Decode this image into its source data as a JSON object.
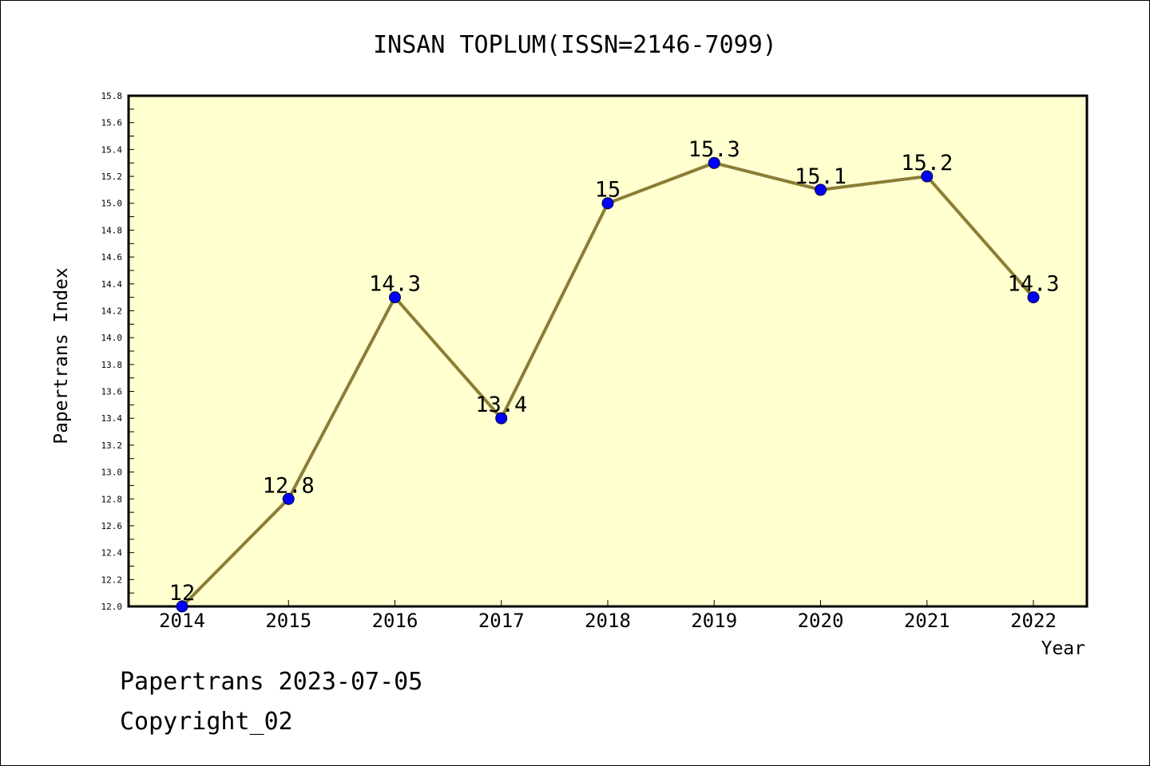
{
  "chart_data": {
    "type": "line",
    "title": "INSAN TOPLUM(ISSN=2146-7099)",
    "xlabel": "Year",
    "ylabel": "Papertrans Index",
    "categories": [
      "2014",
      "2015",
      "2016",
      "2017",
      "2018",
      "2019",
      "2020",
      "2021",
      "2022"
    ],
    "series": [
      {
        "values": [
          12,
          12.8,
          14.3,
          13.4,
          15,
          15.3,
          15.1,
          15.2,
          14.3
        ],
        "labels": [
          "12",
          "12.8",
          "14.3",
          "13.4",
          "15",
          "15.3",
          "15.1",
          "15.2",
          "14.3"
        ]
      }
    ],
    "ylim": [
      12.0,
      15.8
    ],
    "yticks": [
      "12.0",
      "12.2",
      "12.4",
      "12.6",
      "12.8",
      "13.0",
      "13.2",
      "13.4",
      "13.6",
      "13.8",
      "14.0",
      "14.2",
      "14.4",
      "14.6",
      "14.8",
      "15.0",
      "15.2",
      "15.4",
      "15.6",
      "15.8"
    ],
    "grid": false,
    "legend": "none",
    "colors": {
      "plot_background": "#ffffd0",
      "line": "#8b7d35",
      "marker": "#0000ff"
    }
  },
  "footer": {
    "line1": "Papertrans 2023-07-05",
    "line2": "Copyright_02"
  }
}
